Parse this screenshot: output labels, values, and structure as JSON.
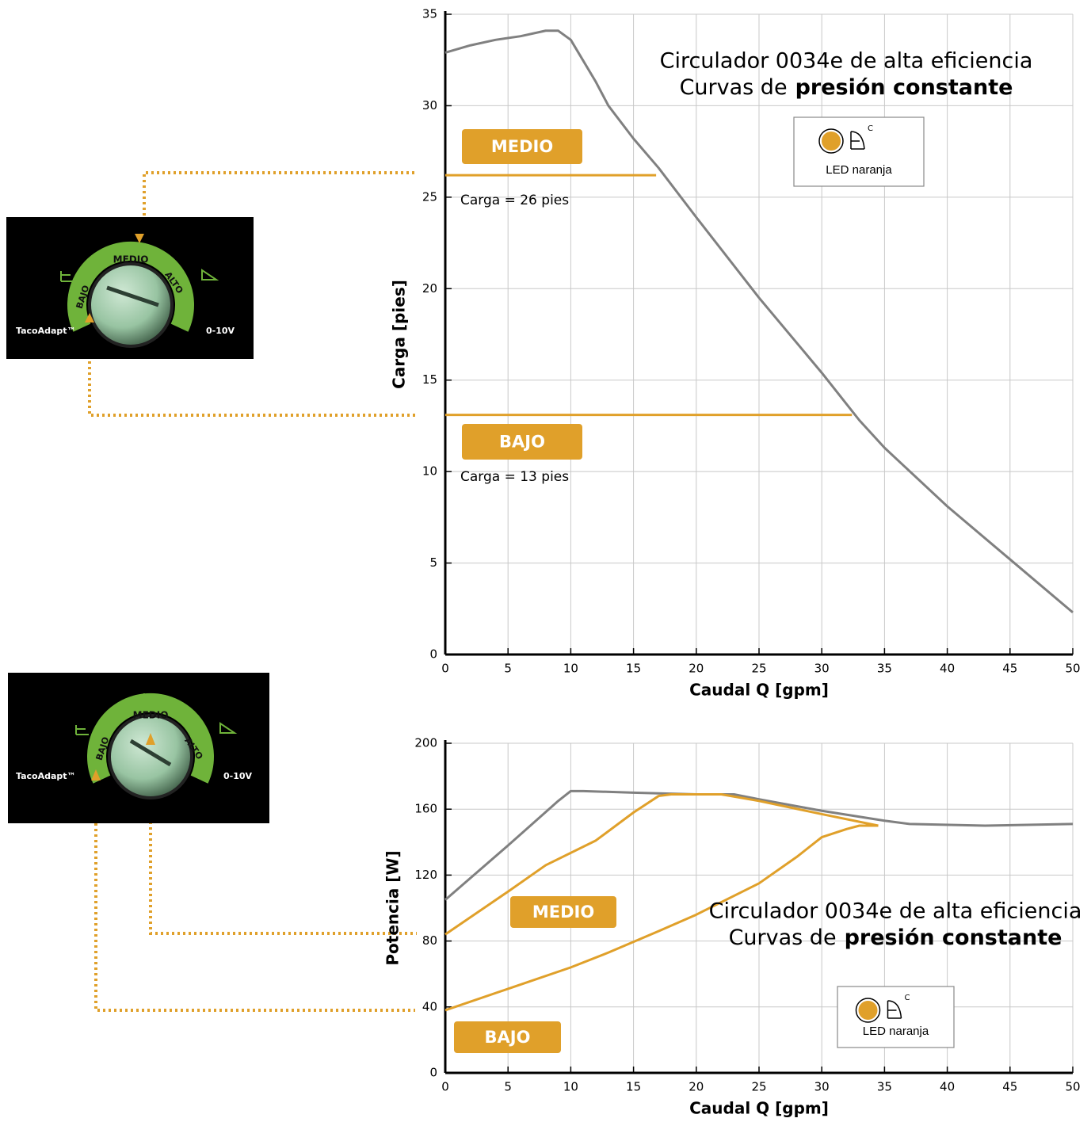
{
  "dials": [
    {
      "labels": [
        "BAJO",
        "MEDIO",
        "ALTO"
      ],
      "brand": "TacoAdapt™",
      "signal": "0-10V"
    },
    {
      "labels": [
        "BAJO",
        "MEDIO",
        "ALTO"
      ],
      "brand": "TacoAdapt™",
      "signal": "0-10V"
    }
  ],
  "chart_data": [
    {
      "type": "line",
      "title": "Circulador 0034e de alta eficiencia",
      "subtitle_prefix": "Curvas de",
      "subtitle_bold": "presión constante",
      "xlabel": "Caudal Q [gpm]",
      "ylabel": "Carga [pies]",
      "xlim": [
        0,
        50
      ],
      "ylim": [
        0,
        35
      ],
      "xticks": [
        0,
        5,
        10,
        15,
        20,
        25,
        30,
        35,
        40,
        45,
        50
      ],
      "yticks": [
        0,
        5,
        10,
        15,
        20,
        25,
        30,
        35
      ],
      "grid": true,
      "series": [
        {
          "color": "#808080",
          "x": [
            0,
            2,
            4,
            6,
            8,
            9,
            10,
            12,
            13,
            15,
            17,
            20,
            25,
            30,
            33,
            35,
            40,
            45,
            50
          ],
          "values": [
            32.9,
            33.3,
            33.6,
            33.8,
            34.1,
            34.1,
            33.6,
            31.3,
            30,
            28.2,
            26.6,
            23.9,
            19.5,
            15.4,
            12.8,
            11.3,
            8.1,
            5.2,
            2.3
          ]
        },
        {
          "name": "MEDIO",
          "color": "#e0a02a",
          "x": [
            0,
            16.8
          ],
          "values": [
            26.2,
            26.2
          ]
        },
        {
          "name": "BAJO",
          "color": "#e0a02a",
          "x": [
            0,
            32.4
          ],
          "values": [
            13.1,
            13.1
          ]
        }
      ],
      "annotations": [
        "Carga = 26 pies",
        "Carga = 13 pies"
      ],
      "legend": {
        "label": "LED naranja",
        "symbol": "C",
        "color": "#e0a02a"
      }
    },
    {
      "type": "line",
      "title": "Circulador 0034e de alta eficiencia",
      "subtitle_prefix": "Curvas de",
      "subtitle_bold": "presión constante",
      "xlabel": "Caudal Q [gpm]",
      "ylabel": "Potencia [W]",
      "xlim": [
        0,
        50
      ],
      "ylim": [
        0,
        200
      ],
      "xticks": [
        0,
        5,
        10,
        15,
        20,
        25,
        30,
        35,
        40,
        45,
        50
      ],
      "yticks": [
        0,
        40,
        80,
        120,
        160,
        200
      ],
      "grid": true,
      "series": [
        {
          "color": "#808080",
          "x": [
            0,
            5,
            9,
            10,
            11,
            15,
            20,
            23,
            25,
            30,
            35,
            37,
            43,
            50
          ],
          "values": [
            105,
            138,
            165,
            171,
            171,
            170,
            169,
            169,
            166,
            159,
            153,
            151,
            150,
            151
          ]
        },
        {
          "name": "MEDIO",
          "color": "#e0a02a",
          "x": [
            0,
            5,
            8,
            12,
            15,
            17,
            18,
            22,
            25,
            30,
            34.5
          ],
          "values": [
            84,
            110,
            126,
            141,
            158,
            168,
            169,
            169,
            165,
            157,
            150
          ]
        },
        {
          "name": "BAJO",
          "color": "#e0a02a",
          "x": [
            0,
            5,
            10,
            13,
            17,
            20,
            25,
            28,
            30,
            32,
            33,
            34.5
          ],
          "values": [
            38,
            51,
            64,
            73,
            86,
            96,
            115,
            131,
            143,
            148,
            150,
            150
          ]
        }
      ],
      "annotations": [],
      "legend": {
        "label": "LED naranja",
        "symbol": "C",
        "color": "#e0a02a"
      }
    }
  ]
}
